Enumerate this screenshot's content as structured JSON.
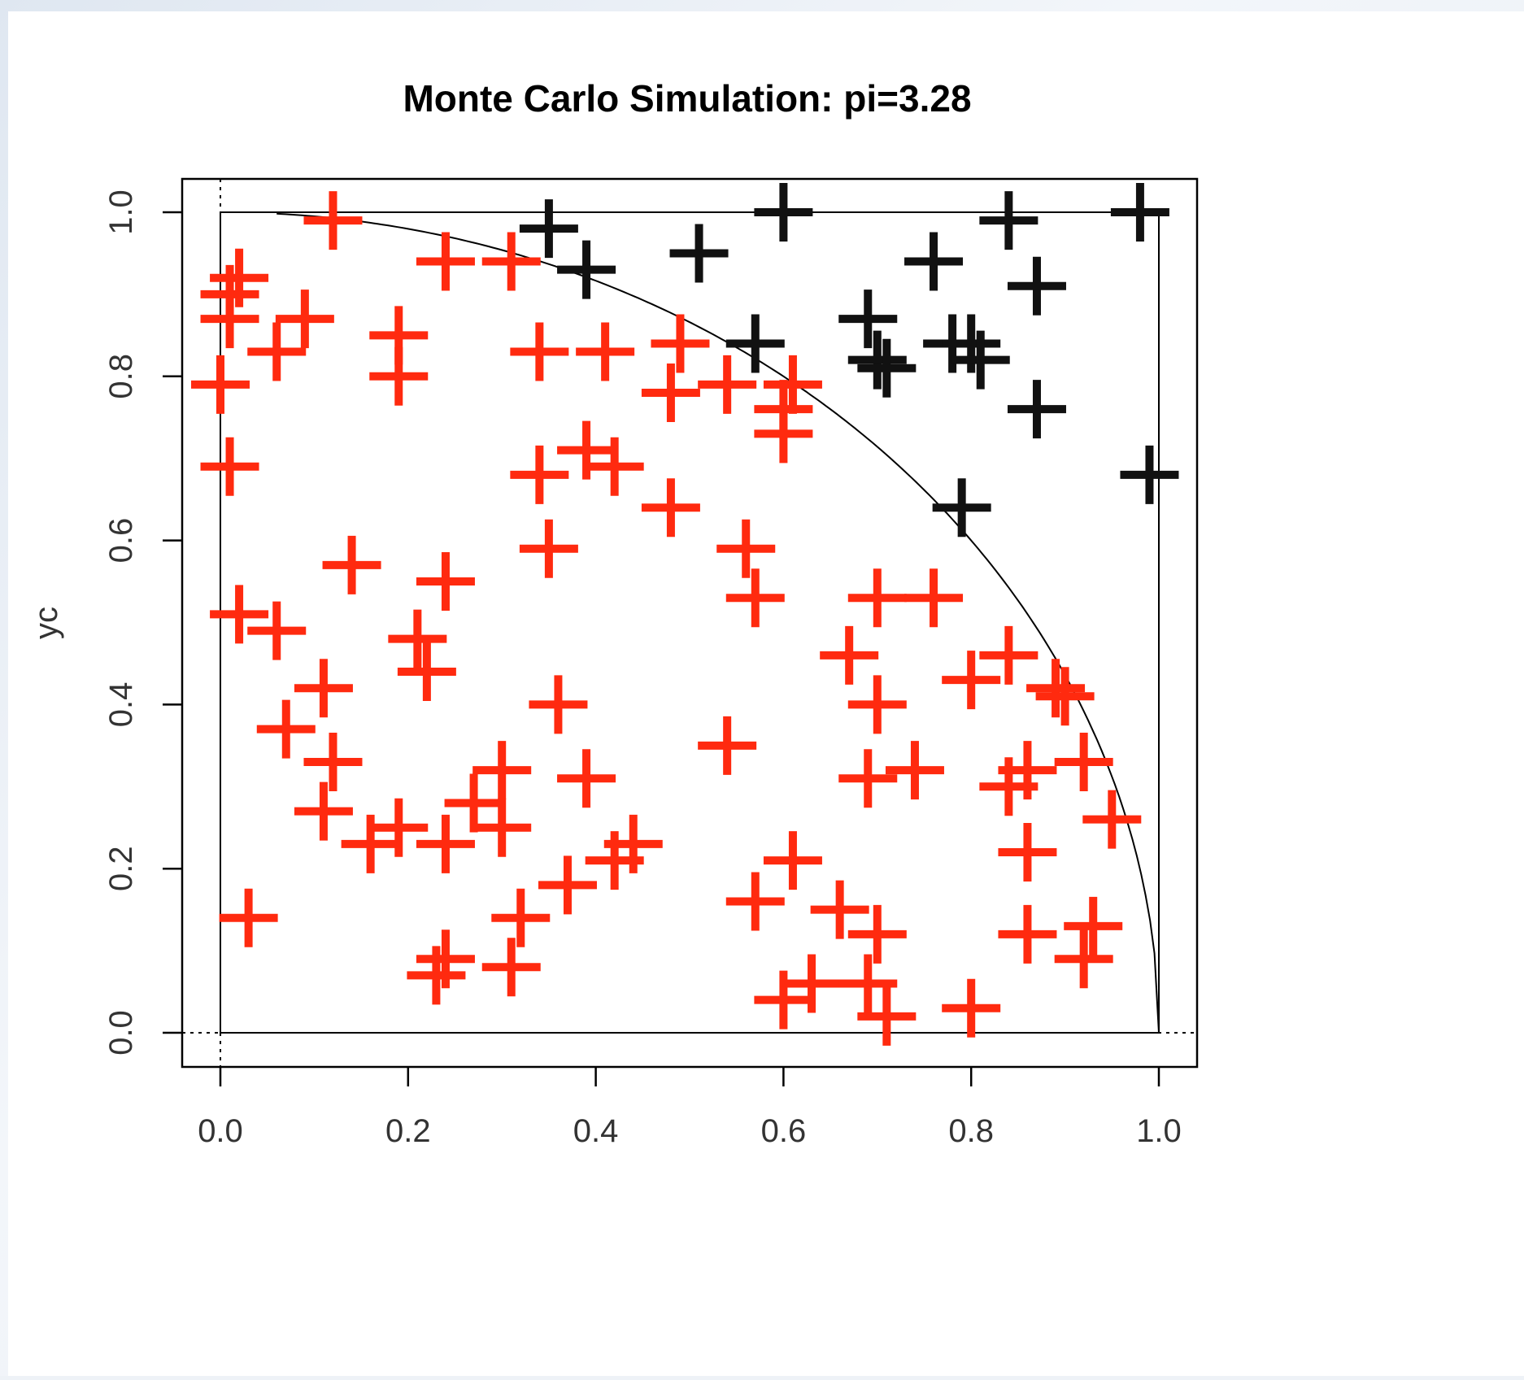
{
  "colors": {
    "inside": "#ff2a0f",
    "outside": "#111111",
    "axis": "#000000",
    "background": "#ffffff"
  },
  "chart_data": {
    "type": "scatter",
    "title": "Monte Carlo Simulation: pi=3.28",
    "xlabel": "",
    "ylabel": "yc",
    "xlim": [
      0,
      1
    ],
    "ylim": [
      0,
      1
    ],
    "x_ticks": [
      "0.0",
      "0.2",
      "0.4",
      "0.6",
      "0.8",
      "1.0"
    ],
    "y_ticks": [
      "0.0",
      "0.2",
      "0.4",
      "0.6",
      "0.8",
      "1.0"
    ],
    "marker": "plus",
    "grid": false,
    "reference_curve": "quarter circle x^2 + y^2 = 1",
    "series": [
      {
        "color": "#ff2a0f",
        "points": [
          [
            0.12,
            0.99
          ],
          [
            0.24,
            0.94
          ],
          [
            0.31,
            0.94
          ],
          [
            0.02,
            0.92
          ],
          [
            0.01,
            0.9
          ],
          [
            0.01,
            0.87
          ],
          [
            0.09,
            0.87
          ],
          [
            0.06,
            0.83
          ],
          [
            0.19,
            0.85
          ],
          [
            0.34,
            0.83
          ],
          [
            0.41,
            0.83
          ],
          [
            0.49,
            0.84
          ],
          [
            0.0,
            0.79
          ],
          [
            0.19,
            0.8
          ],
          [
            0.48,
            0.78
          ],
          [
            0.54,
            0.79
          ],
          [
            0.61,
            0.79
          ],
          [
            0.6,
            0.76
          ],
          [
            0.6,
            0.73
          ],
          [
            0.01,
            0.69
          ],
          [
            0.34,
            0.68
          ],
          [
            0.39,
            0.71
          ],
          [
            0.42,
            0.69
          ],
          [
            0.48,
            0.64
          ],
          [
            0.35,
            0.59
          ],
          [
            0.56,
            0.59
          ],
          [
            0.14,
            0.57
          ],
          [
            0.24,
            0.55
          ],
          [
            0.57,
            0.53
          ],
          [
            0.7,
            0.53
          ],
          [
            0.76,
            0.53
          ],
          [
            0.02,
            0.51
          ],
          [
            0.06,
            0.49
          ],
          [
            0.21,
            0.48
          ],
          [
            0.22,
            0.44
          ],
          [
            0.67,
            0.46
          ],
          [
            0.84,
            0.46
          ],
          [
            0.8,
            0.43
          ],
          [
            0.11,
            0.42
          ],
          [
            0.36,
            0.4
          ],
          [
            0.7,
            0.4
          ],
          [
            0.89,
            0.42
          ],
          [
            0.9,
            0.41
          ],
          [
            0.07,
            0.37
          ],
          [
            0.12,
            0.33
          ],
          [
            0.54,
            0.35
          ],
          [
            0.3,
            0.32
          ],
          [
            0.39,
            0.31
          ],
          [
            0.69,
            0.31
          ],
          [
            0.74,
            0.32
          ],
          [
            0.84,
            0.3
          ],
          [
            0.86,
            0.32
          ],
          [
            0.92,
            0.33
          ],
          [
            0.11,
            0.27
          ],
          [
            0.27,
            0.28
          ],
          [
            0.19,
            0.25
          ],
          [
            0.16,
            0.23
          ],
          [
            0.24,
            0.23
          ],
          [
            0.3,
            0.25
          ],
          [
            0.95,
            0.26
          ],
          [
            0.44,
            0.23
          ],
          [
            0.42,
            0.21
          ],
          [
            0.61,
            0.21
          ],
          [
            0.86,
            0.22
          ],
          [
            0.03,
            0.14
          ],
          [
            0.37,
            0.18
          ],
          [
            0.32,
            0.14
          ],
          [
            0.57,
            0.16
          ],
          [
            0.66,
            0.15
          ],
          [
            0.7,
            0.12
          ],
          [
            0.86,
            0.12
          ],
          [
            0.93,
            0.13
          ],
          [
            0.24,
            0.09
          ],
          [
            0.23,
            0.07
          ],
          [
            0.31,
            0.08
          ],
          [
            0.92,
            0.09
          ],
          [
            0.6,
            0.04
          ],
          [
            0.63,
            0.06
          ],
          [
            0.69,
            0.06
          ],
          [
            0.71,
            0.02
          ],
          [
            0.8,
            0.03
          ]
        ]
      },
      {
        "color": "#111111",
        "points": [
          [
            0.35,
            0.98
          ],
          [
            0.39,
            0.93
          ],
          [
            0.51,
            0.95
          ],
          [
            0.6,
            1.0
          ],
          [
            0.84,
            0.99
          ],
          [
            0.98,
            1.0
          ],
          [
            0.76,
            0.94
          ],
          [
            0.87,
            0.91
          ],
          [
            0.69,
            0.87
          ],
          [
            0.57,
            0.84
          ],
          [
            0.7,
            0.82
          ],
          [
            0.71,
            0.81
          ],
          [
            0.78,
            0.84
          ],
          [
            0.8,
            0.84
          ],
          [
            0.81,
            0.82
          ],
          [
            0.87,
            0.76
          ],
          [
            0.99,
            0.68
          ],
          [
            0.79,
            0.64
          ]
        ]
      }
    ]
  }
}
